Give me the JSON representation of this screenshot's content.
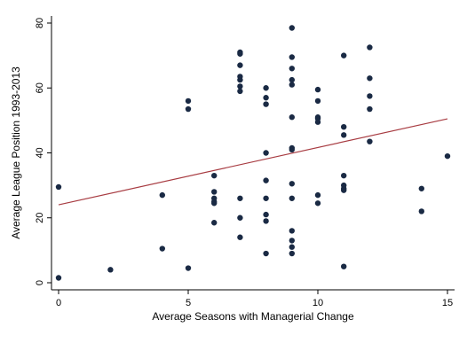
{
  "chart_data": {
    "type": "scatter",
    "title": "",
    "xlabel": "Average Seasons with Managerial Change",
    "ylabel": "Average League Position 1993-2013",
    "xlim": [
      0,
      15
    ],
    "ylim": [
      0,
      80
    ],
    "xticks": [
      0,
      5,
      10,
      15
    ],
    "yticks": [
      0,
      20,
      40,
      60,
      80
    ],
    "grid": false,
    "legend": "none",
    "colors": {
      "points": "#1a2a44",
      "fit_line": "#a83c42",
      "axis": "#000000"
    },
    "points": [
      {
        "x": 0,
        "y": 29.5
      },
      {
        "x": 0,
        "y": 1.5
      },
      {
        "x": 2,
        "y": 4
      },
      {
        "x": 4,
        "y": 27
      },
      {
        "x": 4,
        "y": 10.5
      },
      {
        "x": 5,
        "y": 56
      },
      {
        "x": 5,
        "y": 53.5
      },
      {
        "x": 5,
        "y": 4.5
      },
      {
        "x": 6,
        "y": 33
      },
      {
        "x": 6,
        "y": 28
      },
      {
        "x": 6,
        "y": 26
      },
      {
        "x": 6,
        "y": 25
      },
      {
        "x": 6,
        "y": 24.5
      },
      {
        "x": 6,
        "y": 18.5
      },
      {
        "x": 7,
        "y": 71
      },
      {
        "x": 7,
        "y": 70.5
      },
      {
        "x": 7,
        "y": 67
      },
      {
        "x": 7,
        "y": 63.5
      },
      {
        "x": 7,
        "y": 62.5
      },
      {
        "x": 7,
        "y": 60.5
      },
      {
        "x": 7,
        "y": 59
      },
      {
        "x": 7,
        "y": 26
      },
      {
        "x": 7,
        "y": 20
      },
      {
        "x": 7,
        "y": 14
      },
      {
        "x": 8,
        "y": 60
      },
      {
        "x": 8,
        "y": 57
      },
      {
        "x": 8,
        "y": 55
      },
      {
        "x": 8,
        "y": 40
      },
      {
        "x": 8,
        "y": 31.5
      },
      {
        "x": 8,
        "y": 26
      },
      {
        "x": 8,
        "y": 21
      },
      {
        "x": 8,
        "y": 19
      },
      {
        "x": 8,
        "y": 9
      },
      {
        "x": 9,
        "y": 78.5
      },
      {
        "x": 9,
        "y": 69.5
      },
      {
        "x": 9,
        "y": 66
      },
      {
        "x": 9,
        "y": 62.5
      },
      {
        "x": 9,
        "y": 61
      },
      {
        "x": 9,
        "y": 51
      },
      {
        "x": 9,
        "y": 41.5
      },
      {
        "x": 9,
        "y": 41
      },
      {
        "x": 9,
        "y": 30.5
      },
      {
        "x": 9,
        "y": 26
      },
      {
        "x": 9,
        "y": 16
      },
      {
        "x": 9,
        "y": 13
      },
      {
        "x": 9,
        "y": 11
      },
      {
        "x": 9,
        "y": 9
      },
      {
        "x": 10,
        "y": 59.5
      },
      {
        "x": 10,
        "y": 56
      },
      {
        "x": 10,
        "y": 51
      },
      {
        "x": 10,
        "y": 50.5
      },
      {
        "x": 10,
        "y": 49.5
      },
      {
        "x": 10,
        "y": 27
      },
      {
        "x": 10,
        "y": 24.5
      },
      {
        "x": 11,
        "y": 70
      },
      {
        "x": 11,
        "y": 48
      },
      {
        "x": 11,
        "y": 45.5
      },
      {
        "x": 11,
        "y": 33
      },
      {
        "x": 11,
        "y": 30
      },
      {
        "x": 11,
        "y": 29
      },
      {
        "x": 11,
        "y": 28.5
      },
      {
        "x": 11,
        "y": 5
      },
      {
        "x": 12,
        "y": 72.5
      },
      {
        "x": 12,
        "y": 63
      },
      {
        "x": 12,
        "y": 57.5
      },
      {
        "x": 12,
        "y": 53.5
      },
      {
        "x": 12,
        "y": 43.5
      },
      {
        "x": 14,
        "y": 29
      },
      {
        "x": 14,
        "y": 22
      },
      {
        "x": 15,
        "y": 39
      }
    ],
    "fit_line": {
      "x": [
        0,
        15
      ],
      "y": [
        24,
        50.5
      ]
    }
  }
}
